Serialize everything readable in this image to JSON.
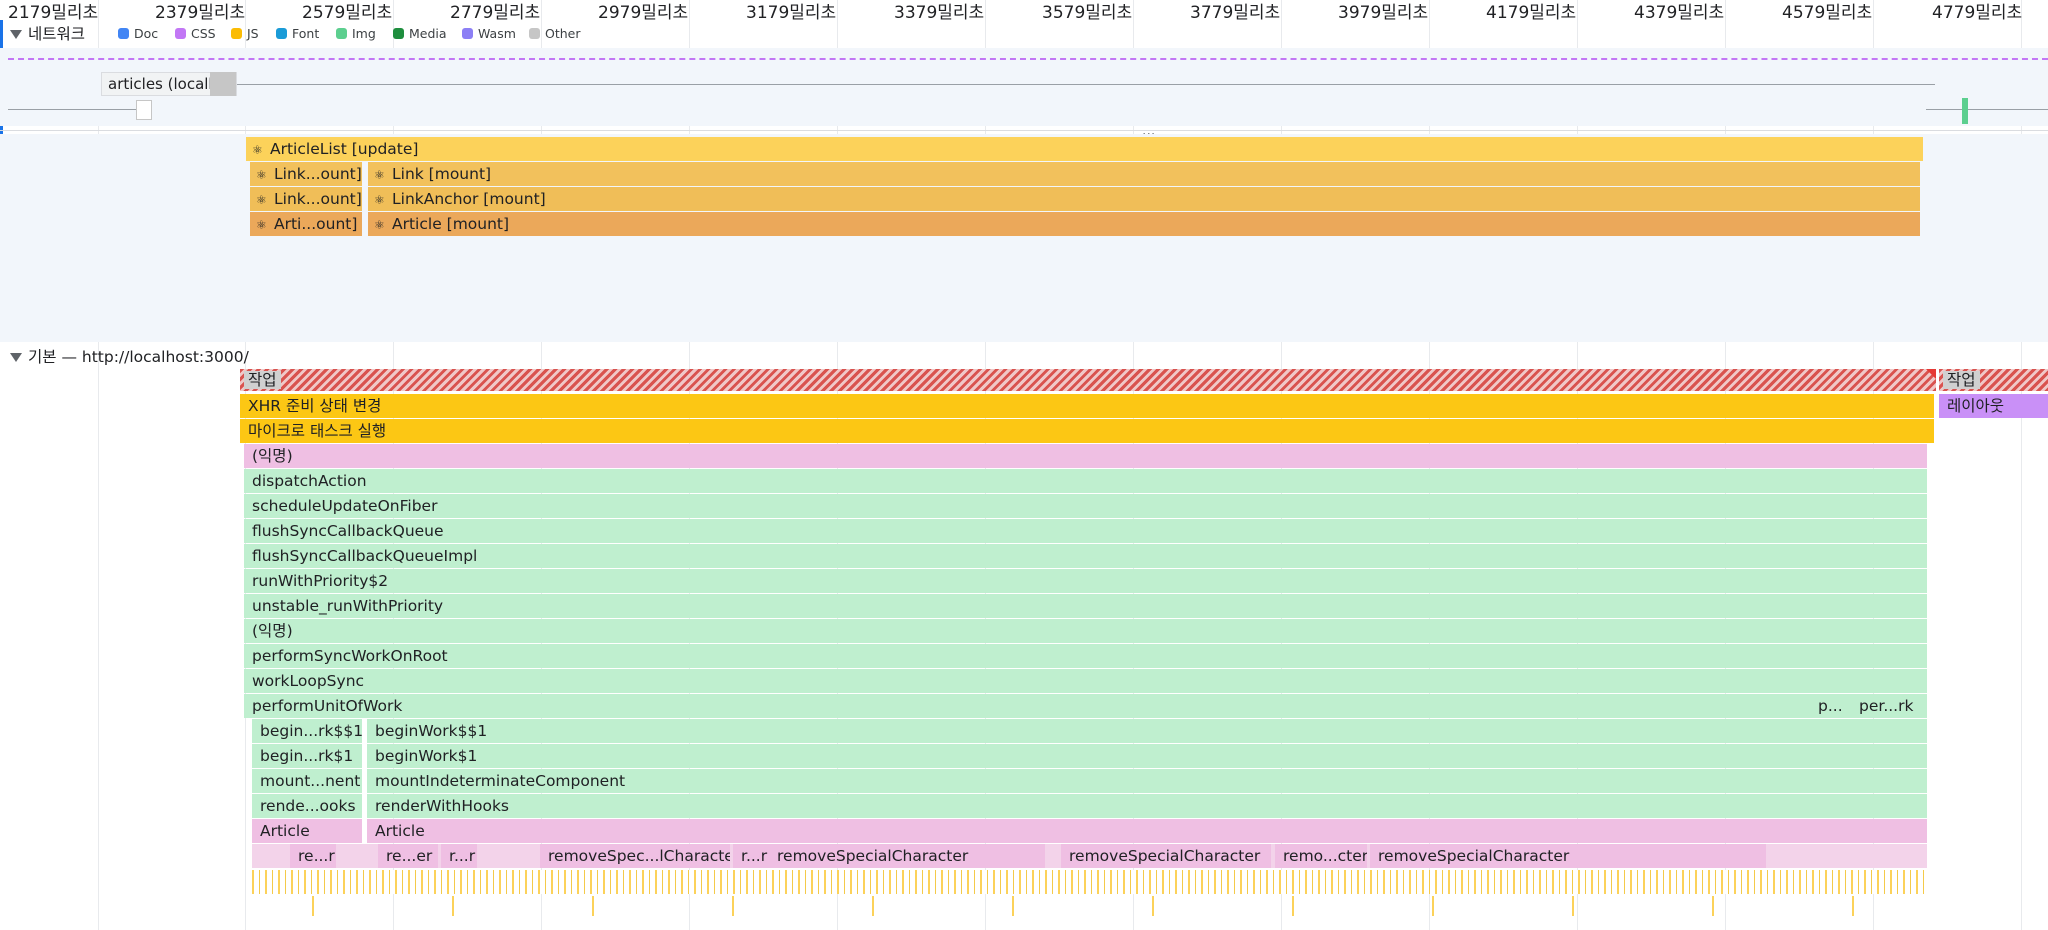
{
  "ruler": {
    "ticks": [
      "2179밀리초",
      "2379밀리초",
      "2579밀리초",
      "2779밀리초",
      "2979밀리초",
      "3179밀리초",
      "3379밀리초",
      "3579밀리초",
      "3779밀리초",
      "3979밀리초",
      "4179밀리초",
      "4379밀리초",
      "4579밀리초",
      "4779밀리초"
    ]
  },
  "network": {
    "title": "네트워크",
    "legend": [
      {
        "label": "Doc",
        "color": "#4285f4"
      },
      {
        "label": "CSS",
        "color": "#c277f5"
      },
      {
        "label": "JS",
        "color": "#fbbc04"
      },
      {
        "label": "Font",
        "color": "#1a9bd7"
      },
      {
        "label": "Img",
        "color": "#5ccf8f"
      },
      {
        "label": "Media",
        "color": "#1e8e3e"
      },
      {
        "label": "Wasm",
        "color": "#8c7ff5"
      },
      {
        "label": "Other",
        "color": "#c6c6c6"
      }
    ],
    "request_label": "articles (localh...",
    "more": "..."
  },
  "timings": {
    "articlelist": "ArticleList [update]",
    "row1_small": "Link...ount]",
    "row1_big": "Link [mount]",
    "row2_small": "Link...ount]",
    "row2_big": "LinkAnchor [mount]",
    "row3_small": "Arti...ount]",
    "row3_big": "Article [mount]"
  },
  "main": {
    "title": "기본 — http://localhost:3000/",
    "task": "작업",
    "task2": "작업",
    "xhr": "XHR 준비 상태 변경",
    "layout": "레이아웃",
    "microtask": "마이크로 태스크 실행",
    "anon1": "(익명)",
    "dispatch": "dispatchAction",
    "schedule": "scheduleUpdateOnFiber",
    "flush": "flushSyncCallbackQueue",
    "flushImpl": "flushSyncCallbackQueueImpl",
    "runPriority": "runWithPriority$2",
    "unstable": "unstable_runWithPriority",
    "anon2": "(익명)",
    "performSync": "performSyncWorkOnRoot",
    "workLoop": "workLoopSync",
    "performUnit": "performUnitOfWork",
    "p_small": "p...",
    "per_small": "per...rk",
    "begin1_small": "begin...rk$$1",
    "begin1_big": "beginWork$$1",
    "begin2_small": "begin...rk$1",
    "begin2_big": "beginWork$1",
    "mount_small": "mount...nent",
    "mount_big": "mountIndeterminateComponent",
    "render_small": "rende...ooks",
    "render_big": "renderWithHooks",
    "article_small": "Article",
    "article_big": "Article",
    "rs": [
      {
        "label": "re...r"
      },
      {
        "label": "re...er"
      },
      {
        "label": "r...r"
      },
      {
        "label": "removeSpec...lCharacter"
      },
      {
        "label": "r...r"
      },
      {
        "label": "removeSpecialCharacter"
      },
      {
        "label": "removeSpecialCharacter"
      },
      {
        "label": "remo...cter"
      },
      {
        "label": "removeSpecialCharacter"
      }
    ]
  }
}
